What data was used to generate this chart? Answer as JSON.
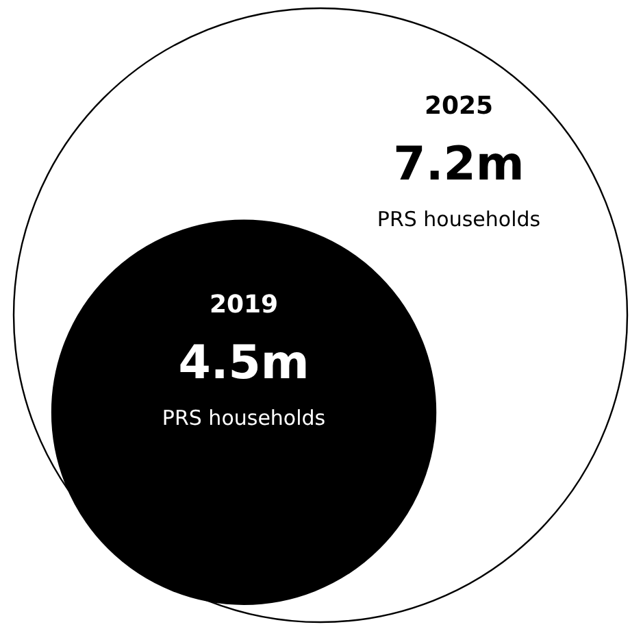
{
  "chart_data": {
    "type": "other",
    "categories": [
      "2019",
      "2025"
    ],
    "values": [
      4.5,
      7.2
    ],
    "value_labels": [
      "4.5m",
      "7.2m"
    ],
    "colors": [
      "#000000",
      "#ffffff"
    ],
    "annotations": [
      "PRS households",
      "PRS households"
    ]
  }
}
